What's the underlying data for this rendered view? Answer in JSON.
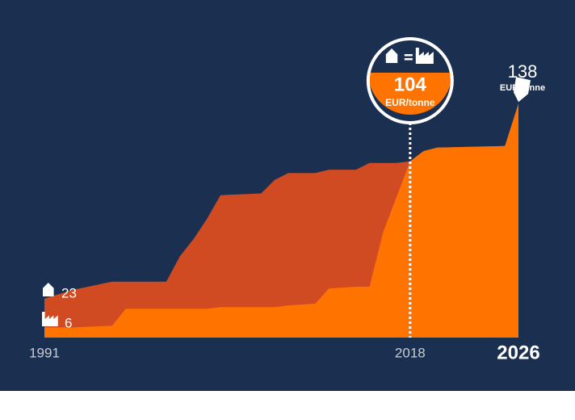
{
  "chart_data": {
    "type": "area",
    "unit": "EUR/tonne",
    "x": [
      1991,
      1993,
      1996,
      1997,
      2000,
      2001,
      2002,
      2003,
      2004,
      2007,
      2008,
      2009,
      2011,
      2012,
      2014,
      2015,
      2016,
      2017,
      2018,
      2019,
      2020,
      2025,
      2026
    ],
    "xlim": [
      1991,
      2026
    ],
    "xticks": [
      1991,
      2018,
      2026
    ],
    "ylim": [
      0,
      150
    ],
    "background": "#1b3050",
    "series": [
      {
        "color": "#d04a22",
        "values": [
          23,
          28,
          33,
          33,
          33,
          48,
          58,
          70,
          84,
          85,
          93,
          97,
          97,
          99,
          99,
          103,
          103,
          103,
          104,
          110,
          112,
          113,
          138
        ]
      },
      {
        "color": "#ff7300",
        "values": [
          6,
          6,
          7,
          17,
          17,
          17,
          17,
          17,
          18,
          18,
          18,
          19,
          20,
          29,
          30,
          30,
          62,
          83,
          104,
          110,
          112,
          113,
          138
        ]
      }
    ]
  }
}
